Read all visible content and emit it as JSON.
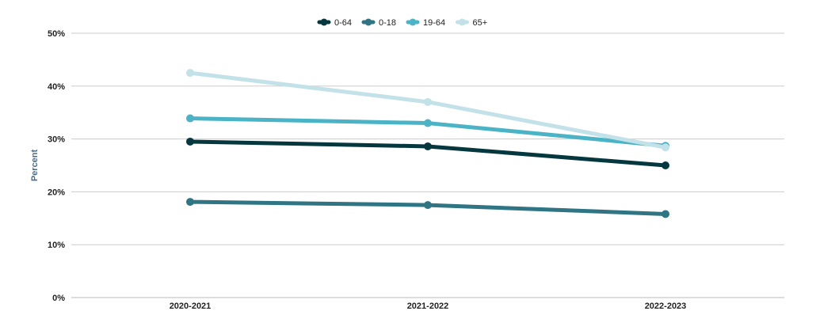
{
  "chart_data": {
    "type": "line",
    "categories": [
      "2020-2021",
      "2021-2022",
      "2022-2023"
    ],
    "ylabel": "Percent",
    "ylim": [
      0,
      50
    ],
    "yticks": [
      "0%",
      "10%",
      "20%",
      "30%",
      "40%",
      "50%"
    ],
    "grid": true,
    "legend_position": "top-center",
    "series": [
      {
        "name": "0-64",
        "color": "#05373f",
        "values": [
          29.5,
          28.6,
          25.0
        ]
      },
      {
        "name": "0-18",
        "color": "#2f7583",
        "values": [
          18.1,
          17.5,
          15.8
        ]
      },
      {
        "name": "19-64",
        "color": "#4ab3c6",
        "values": [
          33.9,
          33.0,
          28.7
        ]
      },
      {
        "name": "65+",
        "color": "#c2e1e8",
        "values": [
          42.5,
          37.0,
          28.4
        ]
      }
    ]
  }
}
